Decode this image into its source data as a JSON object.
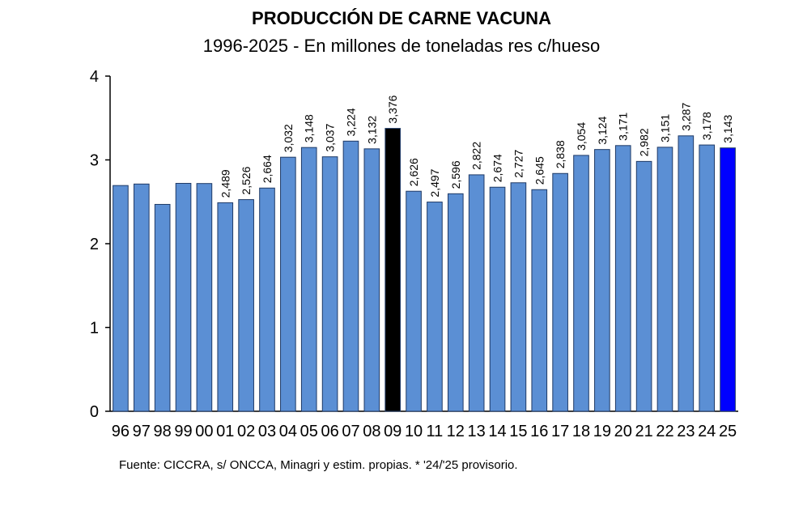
{
  "chart_data": {
    "type": "bar",
    "title": "PRODUCCIÓN DE CARNE VACUNA",
    "subtitle": "1996-2025 - En millones de toneladas res c/hueso",
    "source": "Fuente: CICCRA, s/ ONCCA, Minagri y estim. propias. * '24/'25 provisorio.",
    "ylim": [
      0,
      4
    ],
    "yticks": [
      "0",
      "1",
      "2",
      "3",
      "4"
    ],
    "grid": false,
    "legend": "none",
    "categories": [
      "96",
      "97",
      "98",
      "99",
      "00",
      "01",
      "02",
      "03",
      "04",
      "05",
      "06",
      "07",
      "08",
      "09",
      "10",
      "11",
      "12",
      "13",
      "14",
      "15",
      "16",
      "17",
      "18",
      "19",
      "20",
      "21",
      "22",
      "23",
      "24",
      "25"
    ],
    "values": [
      2.694,
      2.712,
      2.469,
      2.72,
      2.718,
      2.489,
      2.526,
      2.664,
      3.032,
      3.148,
      3.037,
      3.224,
      3.132,
      3.376,
      2.626,
      2.497,
      2.596,
      2.822,
      2.674,
      2.727,
      2.645,
      2.838,
      3.054,
      3.124,
      3.171,
      2.982,
      3.151,
      3.287,
      3.178,
      3.143
    ],
    "data_labels": [
      null,
      null,
      null,
      null,
      null,
      "2,489",
      "2,526",
      "2,664",
      "3,032",
      "3,148",
      "3,037",
      "3,224",
      "3,132",
      "3,376",
      "2,626",
      "2,497",
      "2,596",
      "2,822",
      "2,674",
      "2,727",
      "2,645",
      "2,838",
      "3,054",
      "3,124",
      "3,171",
      "2,982",
      "3,151",
      "3,287",
      "3,178",
      "3,143"
    ],
    "colors": {
      "default": "#5b8fd4",
      "highlight_2009": "#000000",
      "highlight_2025": "#0000ff",
      "bar_stroke": "#1f3a66",
      "axis": "#000000"
    },
    "bar_colors": [
      "default",
      "default",
      "default",
      "default",
      "default",
      "default",
      "default",
      "default",
      "default",
      "default",
      "default",
      "default",
      "default",
      "highlight_2009",
      "default",
      "default",
      "default",
      "default",
      "default",
      "default",
      "default",
      "default",
      "default",
      "default",
      "default",
      "default",
      "default",
      "default",
      "default",
      "highlight_2025"
    ]
  }
}
